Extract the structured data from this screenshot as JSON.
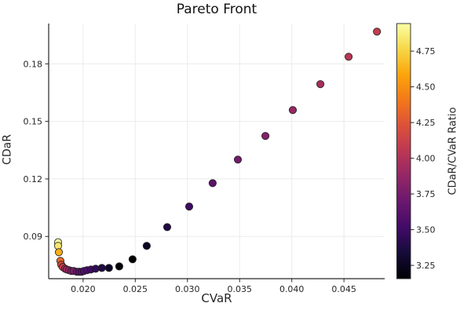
{
  "chart_data": {
    "type": "scatter",
    "title": "Pareto Front",
    "xlabel": "CVaR",
    "ylabel": "CDaR",
    "xlim": [
      0.0167,
      0.0489
    ],
    "ylim": [
      0.068,
      0.201
    ],
    "grid": true,
    "xticks": {
      "values": [
        0.02,
        0.025,
        0.03,
        0.035,
        0.04,
        0.045
      ],
      "labels": [
        "0.020",
        "0.025",
        "0.030",
        "0.035",
        "0.040",
        "0.045"
      ]
    },
    "yticks": {
      "values": [
        0.09,
        0.12,
        0.15,
        0.18
      ],
      "labels": [
        "0.09",
        "0.12",
        "0.15",
        "0.18"
      ]
    },
    "points": {
      "color_by": "cdar / cvar",
      "cvar": [
        0.0176,
        0.0176,
        0.01768,
        0.01782,
        0.0179,
        0.01805,
        0.01827,
        0.01843,
        0.01865,
        0.01888,
        0.0191,
        0.0194,
        0.01963,
        0.01985,
        0.02008,
        0.02038,
        0.02075,
        0.0212,
        0.0218,
        0.02248,
        0.02346,
        0.02474,
        0.0261,
        0.02806,
        0.03017,
        0.03242,
        0.03483,
        0.03747,
        0.0401,
        0.04274,
        0.04545,
        0.04816
      ],
      "cdar": [
        0.087,
        0.0851,
        0.0818,
        0.0773,
        0.0753,
        0.0741,
        0.0732,
        0.0728,
        0.0724,
        0.072,
        0.072,
        0.0716,
        0.0716,
        0.0716,
        0.072,
        0.0724,
        0.0728,
        0.0732,
        0.0736,
        0.0736,
        0.0744,
        0.0781,
        0.0851,
        0.0949,
        0.1056,
        0.1178,
        0.1301,
        0.1424,
        0.1559,
        0.1694,
        0.1837,
        0.1968
      ]
    },
    "colorbar": {
      "label": "CDaR/CVaR Ratio",
      "range": [
        3.157,
        4.943
      ],
      "ticks": {
        "values": [
          3.25,
          3.5,
          3.75,
          4.0,
          4.25,
          4.5,
          4.75
        ],
        "labels": [
          "3.25",
          "3.50",
          "3.75",
          "4.00",
          "4.25",
          "4.50",
          "4.75"
        ]
      },
      "colormap": "inferno",
      "colormap_stops": [
        "#000004",
        "#160b39",
        "#420a68",
        "#6a176e",
        "#932667",
        "#bc3754",
        "#dd513a",
        "#f37819",
        "#fca50a",
        "#f6d746",
        "#fcffa4"
      ]
    },
    "colors": {
      "background": "#ffffff",
      "grid": "#ebebeb",
      "axis": "#262626",
      "text": "#262626",
      "marker_edge": "#1a1a1a"
    }
  }
}
